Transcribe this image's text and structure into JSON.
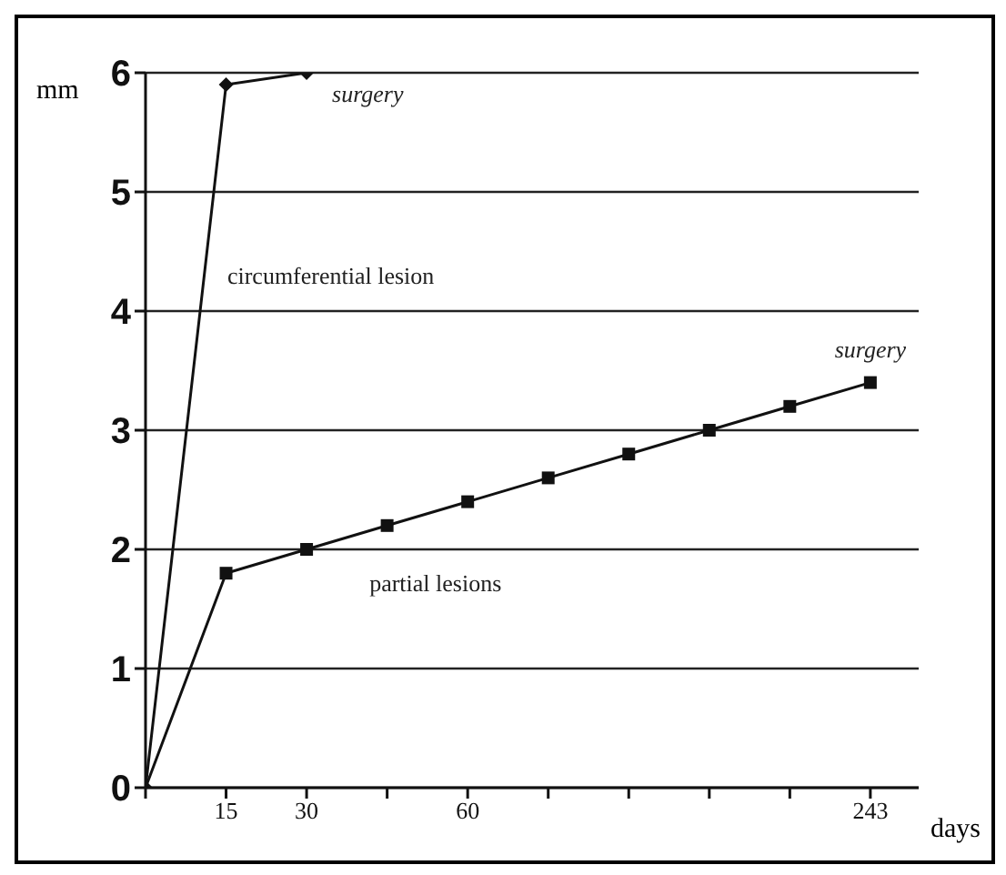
{
  "chart_data": {
    "type": "line",
    "xlabel": "days",
    "ylabel": "mm",
    "categories": [
      null,
      "15",
      "30",
      null,
      "60",
      null,
      null,
      null,
      null,
      "243"
    ],
    "series": [
      {
        "color": "#111111",
        "marker": "diamond",
        "values": [
          0,
          5.9,
          6.0,
          null,
          null,
          null,
          null,
          null,
          null,
          null
        ]
      },
      {
        "color": "#111111",
        "marker": "square",
        "values": [
          0,
          1.8,
          2.0,
          2.2,
          2.4,
          2.6,
          2.8,
          3.0,
          3.2,
          3.4
        ]
      }
    ],
    "ylim": [
      0,
      6
    ],
    "yticks": [
      0,
      1,
      2,
      3,
      4,
      5,
      6
    ],
    "grid": "y",
    "line_style": "solid",
    "legend": false,
    "annotations": [
      {
        "text": "surgery",
        "x": "30",
        "y": 6
      },
      "circumferential lesion",
      "partial lesions",
      {
        "text": "surgery",
        "x": "243",
        "y": 3.4
      }
    ]
  }
}
